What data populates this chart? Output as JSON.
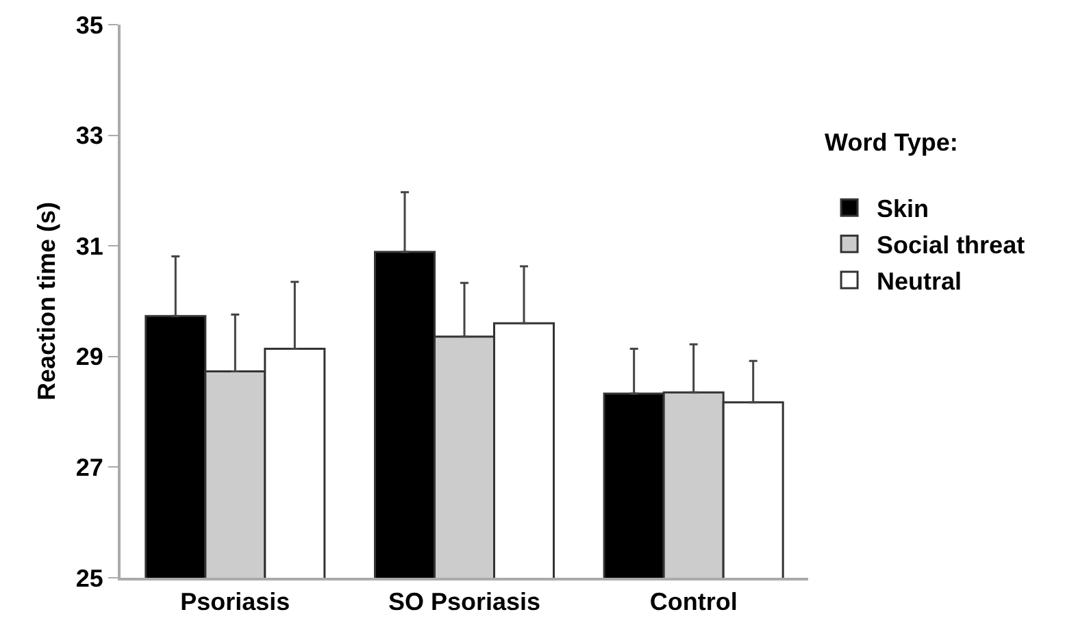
{
  "chart_data": {
    "type": "bar",
    "ylabel": "Reaction time (s)",
    "legend_title": "Word Type:",
    "categories": [
      "Psoriasis",
      "SO Psoriasis",
      "Control"
    ],
    "series": [
      {
        "name": "Skin",
        "color": "#000000",
        "values": [
          29.73,
          30.89,
          28.33
        ],
        "errors": [
          [
            29.73,
            30.81
          ],
          [
            30.89,
            31.97
          ],
          [
            28.33,
            29.14
          ]
        ]
      },
      {
        "name": "Social threat",
        "color": "#cccccc",
        "values": [
          28.73,
          29.36,
          28.35
        ],
        "errors": [
          [
            28.73,
            29.76
          ],
          [
            29.36,
            30.33
          ],
          [
            28.35,
            29.22
          ]
        ]
      },
      {
        "name": "Neutral",
        "color": "#ffffff",
        "values": [
          29.14,
          29.6,
          28.17
        ],
        "errors": [
          [
            29.14,
            30.35
          ],
          [
            29.6,
            30.63
          ],
          [
            28.17,
            28.92
          ]
        ]
      }
    ],
    "ylim": [
      25,
      35
    ],
    "yticks": [
      25,
      27,
      29,
      31,
      33,
      35
    ],
    "grid": false,
    "legend": "top right"
  }
}
